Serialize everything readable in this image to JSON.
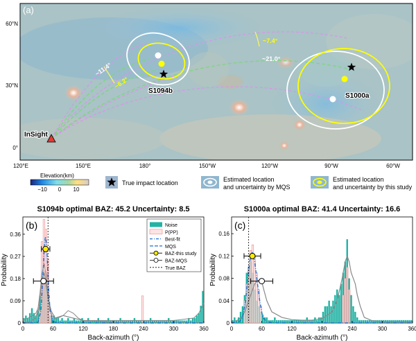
{
  "map": {
    "panel_label": "(a)",
    "lat_ticks": [
      "60°N",
      "30°N",
      "0°"
    ],
    "lon_ticks": [
      "120°E",
      "150°E",
      "180°",
      "150°W",
      "120°W",
      "90°W",
      "60°W"
    ],
    "event1_name": "S1094b",
    "event2_name": "S1000a",
    "lander_name": "InSight",
    "angles": [
      "~11.4°",
      "~6.2°",
      "~7.4°",
      "~21.0°"
    ],
    "colorbar": {
      "title": "Elevation(km)",
      "ticks": [
        "−10",
        "0",
        "10"
      ]
    },
    "legend": {
      "true_location": "True impact location",
      "mqs": "Estimated location and uncertainty by MQS",
      "this_study": "Estimated location and uncertainty by this study"
    },
    "colors": {
      "this_study": "#ffff00",
      "mqs": "#ffffff",
      "path": "#e38bf2",
      "baz_arc": "#7ad77a"
    }
  },
  "chart_data": [
    {
      "type": "bar",
      "panel_label": "(b)",
      "title_event": "S1094b",
      "title_rest": "optimal BAZ: 45.2 Uncertainty: 8.5",
      "xlabel": "Back-azimuth (°)",
      "ylabel": "Probability",
      "xlim": [
        0,
        360
      ],
      "ylim": [
        0,
        0.43
      ],
      "xticks": [
        0,
        60,
        120,
        180,
        240,
        300,
        360
      ],
      "yticks": [
        0,
        0.09,
        0.18,
        0.27,
        0.36
      ],
      "true_baz": 50,
      "baz_this_study": {
        "value": 45.2,
        "err": 8.5,
        "y": 0.3
      },
      "baz_mqs": {
        "value": 41,
        "err": 20,
        "y": 0.17
      },
      "legend": [
        "Noise",
        "P(PP)",
        "Best-fit",
        "MQS",
        "BAZ-this study",
        "BAZ-MQS",
        "True BAZ"
      ],
      "series": [
        {
          "name": "Noise",
          "x": [
            2,
            6,
            10,
            14,
            18,
            22,
            26,
            30,
            34,
            38,
            42,
            46,
            50,
            54,
            58,
            62,
            66,
            70,
            74,
            78,
            82,
            86,
            90,
            94,
            98,
            102,
            106,
            110,
            114,
            118,
            122,
            126,
            130,
            134,
            138,
            142,
            146,
            150,
            154,
            158,
            162,
            166,
            170,
            174,
            178,
            182,
            186,
            190,
            194,
            198,
            202,
            206,
            210,
            214,
            218,
            222,
            226,
            230,
            234,
            238,
            242,
            246,
            250,
            254,
            258,
            262,
            266,
            270,
            274,
            278,
            282,
            286,
            290,
            294,
            298,
            302,
            306,
            310,
            314,
            318,
            322,
            326,
            330,
            334,
            338,
            342,
            346,
            350,
            354,
            358
          ],
          "values": [
            0.02,
            0.03,
            0.02,
            0.04,
            0.06,
            0.04,
            0.03,
            0.05,
            0.11,
            0.19,
            0.21,
            0.17,
            0.1,
            0.03,
            0.02,
            0.03,
            0.02,
            0.02,
            0.01,
            0.02,
            0.01,
            0.01,
            0.02,
            0.01,
            0.01,
            0.02,
            0.01,
            0.01,
            0.01,
            0.02,
            0.01,
            0.01,
            0.02,
            0.01,
            0.01,
            0.01,
            0.01,
            0.02,
            0.01,
            0.01,
            0.01,
            0.01,
            0.02,
            0.01,
            0.01,
            0.01,
            0.01,
            0.01,
            0.02,
            0.01,
            0.01,
            0.01,
            0.01,
            0.01,
            0.01,
            0.02,
            0.01,
            0.01,
            0.01,
            0.01,
            0.01,
            0.01,
            0.01,
            0.02,
            0.01,
            0.01,
            0.01,
            0.01,
            0.01,
            0.01,
            0.01,
            0.01,
            0.02,
            0.01,
            0.01,
            0.01,
            0.01,
            0.01,
            0.01,
            0.01,
            0.01,
            0.01,
            0.02,
            0.01,
            0.02,
            0.02,
            0.03,
            0.04,
            0.07,
            0.13
          ]
        },
        {
          "name": "P(PP)",
          "x": [
            34,
            38,
            42,
            46,
            50,
            54,
            238
          ],
          "values": [
            0.05,
            0.33,
            0.42,
            0.38,
            0.26,
            0.06,
            0.11
          ]
        },
        {
          "name": "Best-fit",
          "x": [
            0,
            20,
            30,
            36,
            40,
            42,
            44,
            45,
            46,
            48,
            50,
            54,
            60,
            80,
            120,
            240,
            360
          ],
          "values": [
            0,
            0,
            0.004,
            0.05,
            0.2,
            0.29,
            0.34,
            0.35,
            0.34,
            0.28,
            0.18,
            0.05,
            0.005,
            0,
            0,
            0,
            0
          ]
        },
        {
          "name": "MQS",
          "x": [
            0,
            15,
            25,
            32,
            36,
            40,
            42,
            44,
            46,
            50,
            56,
            64,
            80,
            100,
            120,
            200,
            300,
            360
          ],
          "values": [
            0,
            0.005,
            0.02,
            0.06,
            0.14,
            0.19,
            0.2,
            0.19,
            0.16,
            0.1,
            0.05,
            0.02,
            0.03,
            0.02,
            0.01,
            0,
            0,
            0
          ]
        },
        {
          "name": "Noise-fit",
          "x": [
            0,
            10,
            20,
            26,
            30,
            34,
            38,
            42,
            46,
            50,
            54,
            58,
            62,
            70,
            80,
            90,
            100,
            110,
            120,
            140,
            200,
            300,
            340,
            350,
            360
          ],
          "values": [
            0.01,
            0.02,
            0.03,
            0.04,
            0.06,
            0.12,
            0.2,
            0.24,
            0.2,
            0.12,
            0.05,
            0.03,
            0.02,
            0.02,
            0.03,
            0.05,
            0.04,
            0.02,
            0.01,
            0.01,
            0.01,
            0.01,
            0.02,
            0.04,
            0.08
          ]
        }
      ]
    },
    {
      "type": "bar",
      "panel_label": "(c)",
      "title_event": "S1000a",
      "title_rest": "optimal BAZ: 41.4 Uncertainty: 16.6",
      "xlabel": "Back-azimuth (°)",
      "ylabel": "Probability",
      "xlim": [
        0,
        360
      ],
      "ylim": [
        0,
        0.19
      ],
      "xticks": [
        0,
        60,
        120,
        180,
        240,
        300,
        360
      ],
      "yticks": [
        0,
        0.04,
        0.08,
        0.12,
        0.16
      ],
      "true_baz": 34,
      "baz_this_study": {
        "value": 41.4,
        "err": 16.6,
        "y": 0.12
      },
      "baz_mqs": {
        "value": 60,
        "err": 22,
        "y": 0.075
      },
      "series": [
        {
          "name": "Noise",
          "x": [
            2,
            6,
            10,
            14,
            18,
            22,
            26,
            30,
            34,
            38,
            42,
            46,
            50,
            54,
            58,
            62,
            66,
            70,
            74,
            78,
            82,
            86,
            90,
            94,
            98,
            102,
            106,
            110,
            114,
            118,
            122,
            126,
            130,
            134,
            138,
            142,
            146,
            150,
            154,
            158,
            162,
            166,
            170,
            174,
            178,
            182,
            186,
            190,
            194,
            198,
            202,
            206,
            210,
            214,
            218,
            222,
            226,
            230,
            234,
            238,
            242,
            246,
            250,
            254,
            258,
            262,
            266,
            270,
            274,
            278,
            282,
            286,
            290,
            294,
            298,
            302,
            306,
            310,
            314,
            318,
            322,
            326,
            330,
            334,
            338,
            342,
            346,
            350,
            354,
            358
          ],
          "values": [
            0.005,
            0.01,
            0.005,
            0.01,
            0.02,
            0.03,
            0.05,
            0.09,
            0.1,
            0.11,
            0.09,
            0.06,
            0.04,
            0.03,
            0.02,
            0.015,
            0.01,
            0.01,
            0.005,
            0.005,
            0.005,
            0.01,
            0.005,
            0.005,
            0.005,
            0.005,
            0.005,
            0.005,
            0.005,
            0.005,
            0.005,
            0.005,
            0.005,
            0.005,
            0.005,
            0.005,
            0.005,
            0.01,
            0.005,
            0.005,
            0.005,
            0.01,
            0.005,
            0.01,
            0.01,
            0.02,
            0.03,
            0.03,
            0.04,
            0.03,
            0.04,
            0.05,
            0.06,
            0.05,
            0.07,
            0.09,
            0.11,
            0.15,
            0.08,
            0.05,
            0.03,
            0.02,
            0.01,
            0.005,
            0.005,
            0.005,
            0.005,
            0.005,
            0.005,
            0.005,
            0.005,
            0.005,
            0.005,
            0.005,
            0.005,
            0.005,
            0.005,
            0.005,
            0.005,
            0.005,
            0.005,
            0.005,
            0.005,
            0.005,
            0.005,
            0.005,
            0.005,
            0.005,
            0.005,
            0.005
          ]
        },
        {
          "name": "P(PP)",
          "x": [
            26,
            30,
            34,
            38,
            42,
            46,
            50,
            54,
            58,
            222,
            226,
            230,
            234
          ],
          "values": [
            0.04,
            0.07,
            0.1,
            0.13,
            0.14,
            0.12,
            0.09,
            0.06,
            0.03,
            0.05,
            0.08,
            0.1,
            0.06
          ]
        },
        {
          "name": "Best-fit",
          "x": [
            0,
            15,
            22,
            28,
            32,
            36,
            40,
            41,
            42,
            46,
            50,
            56,
            62,
            70,
            90,
            360
          ],
          "values": [
            0,
            0.002,
            0.01,
            0.04,
            0.08,
            0.11,
            0.125,
            0.126,
            0.125,
            0.11,
            0.08,
            0.04,
            0.01,
            0.002,
            0,
            0
          ]
        },
        {
          "name": "MQS",
          "x": [
            0,
            10,
            20,
            26,
            30,
            34,
            38,
            42,
            46,
            50,
            56,
            60,
            64,
            70,
            80,
            100,
            120,
            140,
            160,
            180,
            200,
            210,
            220,
            226,
            230,
            234,
            238,
            242,
            246,
            250,
            256,
            264,
            280,
            300,
            340,
            360
          ],
          "values": [
            0.002,
            0.004,
            0.01,
            0.02,
            0.03,
            0.04,
            0.05,
            0.06,
            0.07,
            0.075,
            0.077,
            0.074,
            0.06,
            0.04,
            0.02,
            0.01,
            0.006,
            0.005,
            0.005,
            0.008,
            0.02,
            0.04,
            0.08,
            0.11,
            0.12,
            0.11,
            0.09,
            0.08,
            0.07,
            0.05,
            0.03,
            0.01,
            0.004,
            0.002,
            0.002,
            0.002
          ]
        }
      ]
    }
  ]
}
